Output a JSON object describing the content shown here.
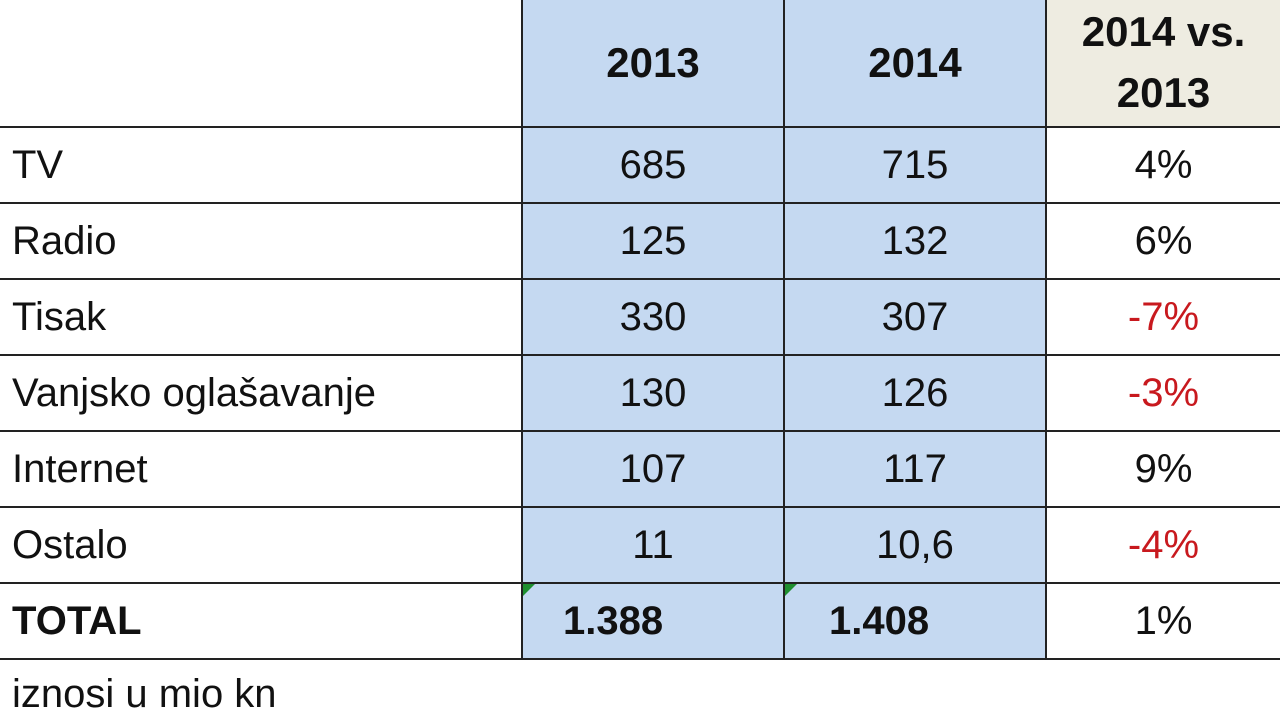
{
  "table": {
    "header": [
      "2013",
      "2014",
      "2014 vs. 2013"
    ],
    "rows": [
      [
        "TV",
        "685",
        "715",
        "4%"
      ],
      [
        "Radio",
        "125",
        "132",
        "6%"
      ],
      [
        "Tisak",
        "330",
        "307",
        "-7%"
      ],
      [
        "Vanjsko oglašavanje",
        "130",
        "126",
        "-3%"
      ],
      [
        "Internet",
        "107",
        "117",
        "9%"
      ],
      [
        "Ostalo",
        "11",
        "10,6",
        "-4%"
      ],
      [
        "TOTAL",
        "1.388",
        "1.408",
        "1%"
      ]
    ]
  },
  "note": "iznosi u mio kn"
}
